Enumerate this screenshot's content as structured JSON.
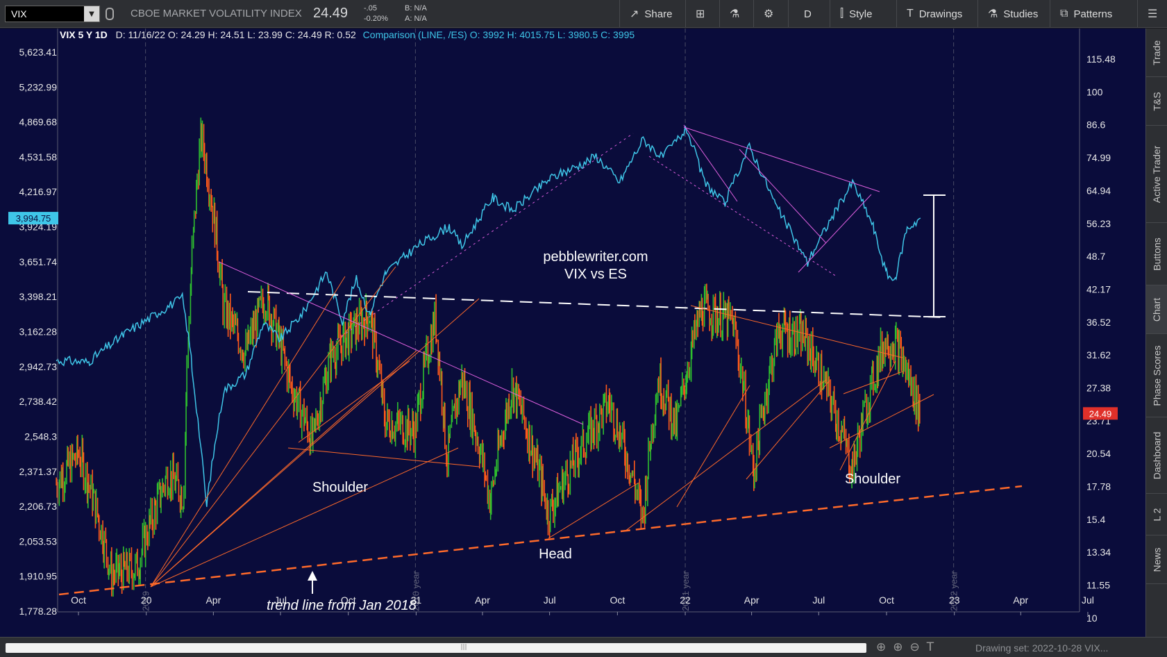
{
  "toolbar": {
    "symbol": "VIX",
    "description": "CBOE MARKET VOLATILITY INDEX",
    "last": "24.49",
    "change": "-.05",
    "change_pct": "-0.20%",
    "bid": "B: N/A",
    "ask": "A: N/A",
    "share_label": "Share",
    "aggregation_label": "D",
    "style_label": "Style",
    "drawings_label": "Drawings",
    "studies_label": "Studies",
    "patterns_label": "Patterns"
  },
  "info_bar": {
    "title": "VIX 5 Y 1D",
    "date": "D: 11/16/22",
    "open": "O: 24.29",
    "high": "H: 24.51",
    "low": "L: 23.99",
    "close": "C: 24.49",
    "range": "R: 0.52",
    "comparison": "Comparison (LINE, /ES)",
    "cmp_open": "O: 3992",
    "cmp_high": "H: 4015.75",
    "cmp_low": "L: 3980.5",
    "cmp_close": "C: 3995"
  },
  "side_tabs": [
    "Trade",
    "T&S",
    "Active Trader",
    "Buttons",
    "Chart",
    "Phase Scores",
    "Dashboard",
    "L 2",
    "News"
  ],
  "bottom_bar": {
    "drawing_set": "Drawing set: 2022-10-28 VIX..."
  },
  "colors": {
    "background": "#0a0c3b",
    "es_line": "#3fc6e8",
    "vix_up": "#2fbf2f",
    "vix_down": "#ff5a1a",
    "trend_orange": "#ff6a2a",
    "magenta": "#e060e0",
    "dashed_white": "#ffffff"
  },
  "chart_data": {
    "type": "line",
    "subtitle": "VIX vs ES",
    "x_ticks": [
      "Oct",
      "20",
      "Apr",
      "Jul",
      "Oct",
      "21",
      "Apr",
      "Jul",
      "Oct",
      "22",
      "Apr",
      "Jul",
      "Oct",
      "23",
      "Apr",
      "Jul"
    ],
    "year_markers": [
      "2019",
      "2020 year",
      "2021 year",
      "2022 year"
    ],
    "left_axis_ticks": [
      "5,623.41",
      "5,232.99",
      "4,869.68",
      "4,531.58",
      "4,216.97",
      "3,924.19",
      "3,651.74",
      "3,398.21",
      "3,162.28",
      "2,942.73",
      "2,738.42",
      "2,548.3",
      "2,371.37",
      "2,206.73",
      "2,053.53",
      "1,910.95",
      "1,778.28"
    ],
    "right_axis_ticks": [
      "115.48",
      "100",
      "86.6",
      "74.99",
      "64.94",
      "56.23",
      "48.7",
      "42.17",
      "36.52",
      "31.62",
      "27.38",
      "23.71",
      "20.54",
      "17.78",
      "15.4",
      "13.34",
      "11.55",
      "10"
    ],
    "left_price_label": "3,994.75",
    "right_price_label": "24.49",
    "ylim_left": [
      1778.28,
      5623.41
    ],
    "ylim_right": [
      10,
      115.48
    ],
    "log_scale": true,
    "series": [
      {
        "name": "/ES",
        "axis": "left",
        "points": [
          [
            "2019-09-01",
            2980
          ],
          [
            "2019-10-15",
            2970
          ],
          [
            "2019-12-01",
            3140
          ],
          [
            "2020-01-15",
            3280
          ],
          [
            "2020-02-19",
            3390
          ],
          [
            "2020-03-02",
            3000
          ],
          [
            "2020-03-23",
            2200
          ],
          [
            "2020-04-15",
            2800
          ],
          [
            "2020-05-15",
            2900
          ],
          [
            "2020-06-08",
            3220
          ],
          [
            "2020-07-01",
            3110
          ],
          [
            "2020-08-01",
            3290
          ],
          [
            "2020-09-02",
            3580
          ],
          [
            "2020-09-23",
            3230
          ],
          [
            "2020-10-12",
            3520
          ],
          [
            "2020-10-30",
            3270
          ],
          [
            "2020-11-20",
            3560
          ],
          [
            "2020-12-31",
            3760
          ],
          [
            "2021-02-15",
            3930
          ],
          [
            "2021-03-04",
            3770
          ],
          [
            "2021-04-15",
            4170
          ],
          [
            "2021-05-12",
            4060
          ],
          [
            "2021-07-01",
            4330
          ],
          [
            "2021-08-15",
            4470
          ],
          [
            "2021-09-02",
            4540
          ],
          [
            "2021-10-04",
            4300
          ],
          [
            "2021-11-05",
            4700
          ],
          [
            "2021-12-01",
            4520
          ],
          [
            "2022-01-03",
            4800
          ],
          [
            "2022-01-27",
            4300
          ],
          [
            "2022-02-24",
            4110
          ],
          [
            "2022-03-29",
            4630
          ],
          [
            "2022-05-02",
            4130
          ],
          [
            "2022-06-16",
            3640
          ],
          [
            "2022-07-01",
            3810
          ],
          [
            "2022-08-16",
            4300
          ],
          [
            "2022-09-13",
            3930
          ],
          [
            "2022-09-30",
            3580
          ],
          [
            "2022-10-13",
            3500
          ],
          [
            "2022-10-28",
            3900
          ],
          [
            "2022-11-16",
            3995
          ]
        ]
      },
      {
        "name": "VIX",
        "axis": "right",
        "points": [
          [
            "2019-09-01",
            18.0
          ],
          [
            "2019-10-02",
            20.6
          ],
          [
            "2019-11-15",
            12.1
          ],
          [
            "2019-12-20",
            12.5
          ],
          [
            "2020-01-31",
            18.8
          ],
          [
            "2020-02-21",
            17.1
          ],
          [
            "2020-03-16",
            82.7
          ],
          [
            "2020-04-15",
            39.0
          ],
          [
            "2020-05-15",
            31.9
          ],
          [
            "2020-06-11",
            40.8
          ],
          [
            "2020-07-15",
            27.8
          ],
          [
            "2020-08-14",
            21.6
          ],
          [
            "2020-09-08",
            31.5
          ],
          [
            "2020-10-30",
            38.0
          ],
          [
            "2020-11-20",
            23.7
          ],
          [
            "2020-12-31",
            22.8
          ],
          [
            "2021-01-27",
            37.2
          ],
          [
            "2021-02-12",
            19.9
          ],
          [
            "2021-03-04",
            28.6
          ],
          [
            "2021-04-12",
            16.6
          ],
          [
            "2021-05-12",
            27.6
          ],
          [
            "2021-06-30",
            15.8
          ],
          [
            "2021-08-18",
            21.6
          ],
          [
            "2021-09-20",
            25.7
          ],
          [
            "2021-11-05",
            15.4
          ],
          [
            "2021-11-26",
            28.6
          ],
          [
            "2021-12-20",
            22.9
          ],
          [
            "2022-01-24",
            38.9
          ],
          [
            "2022-03-07",
            36.5
          ],
          [
            "2022-04-04",
            18.6
          ],
          [
            "2022-05-09",
            35.5
          ],
          [
            "2022-06-13",
            34.0
          ],
          [
            "2022-08-16",
            19.1
          ],
          [
            "2022-09-29",
            33.6
          ],
          [
            "2022-10-13",
            33.5
          ],
          [
            "2022-11-16",
            24.49
          ]
        ]
      }
    ],
    "annotations": [
      {
        "text": "pebblewriter.com"
      },
      {
        "text": "VIX vs ES"
      },
      {
        "text": "Shoulder"
      },
      {
        "text": "Head"
      },
      {
        "text": "Shoulder"
      },
      {
        "text": "trend line from Jan 2018"
      }
    ]
  }
}
